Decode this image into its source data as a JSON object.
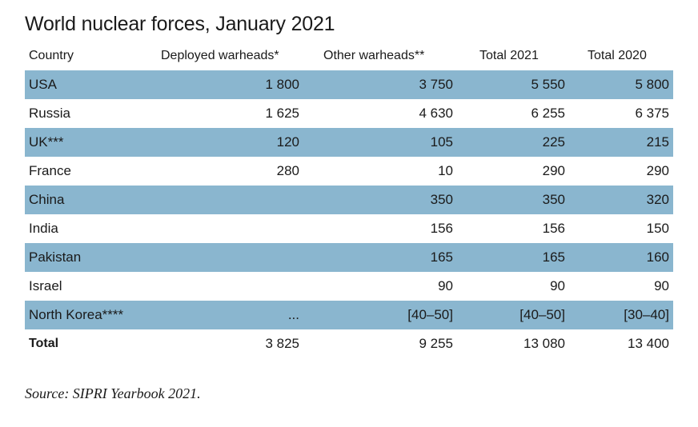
{
  "title": "World nuclear forces, January 2021",
  "headers": [
    "Country",
    "Deployed warheads*",
    "Other warheads**",
    "Total 2021",
    "Total 2020"
  ],
  "rows": [
    [
      "USA",
      "1 800",
      "3 750",
      "5 550",
      "5 800"
    ],
    [
      "Russia",
      "1 625",
      "4 630",
      "6 255",
      "6 375"
    ],
    [
      "UK***",
      "120",
      "105",
      "225",
      "215"
    ],
    [
      "France",
      "280",
      "10",
      "290",
      "290"
    ],
    [
      "China",
      "",
      "350",
      "350",
      "320"
    ],
    [
      "India",
      "",
      "156",
      "156",
      "150"
    ],
    [
      "Pakistan",
      "",
      "165",
      "165",
      "160"
    ],
    [
      "Israel",
      "",
      "90",
      "90",
      "90"
    ],
    [
      "North Korea****",
      "...",
      "[40–50]",
      "[40–50]",
      "[30–40]"
    ]
  ],
  "total": [
    "Total",
    "3 825",
    "9 255",
    "13 080",
    "13 400"
  ],
  "source": "Source: SIPRI Yearbook 2021.",
  "colors": {
    "shaded_row": "#8ab6cf",
    "text": "#1a1a1a"
  }
}
